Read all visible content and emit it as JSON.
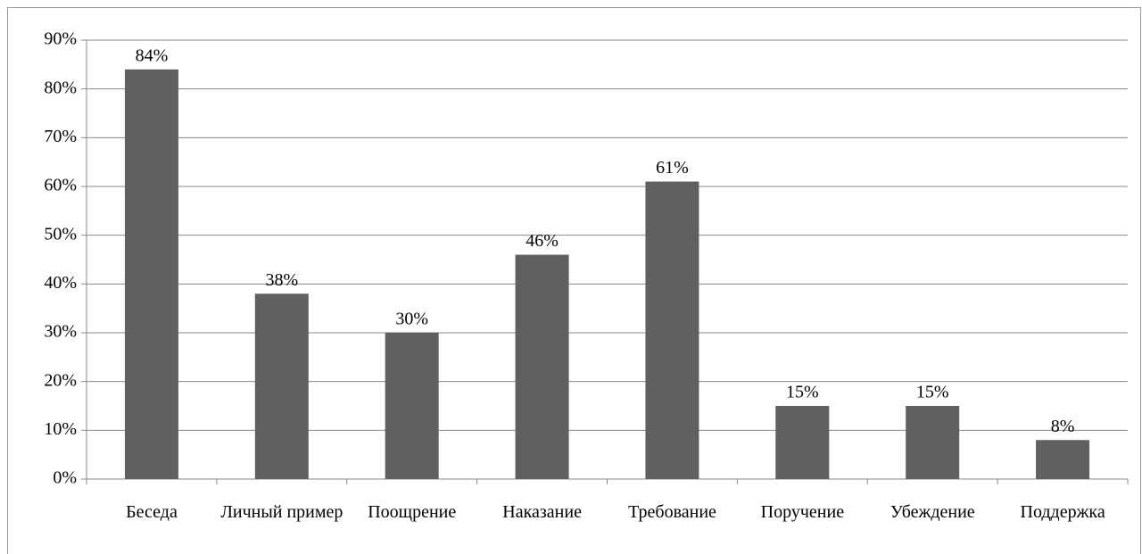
{
  "chart_data": {
    "type": "bar",
    "categories": [
      "Беседа",
      "Личный пример",
      "Поощрение",
      "Наказание",
      "Требование",
      "Поручение",
      "Убеждение",
      "Поддержка"
    ],
    "values": [
      84,
      38,
      30,
      46,
      61,
      15,
      15,
      8
    ],
    "value_labels": [
      "84%",
      "38%",
      "30%",
      "46%",
      "61%",
      "15%",
      "15%",
      "8%"
    ],
    "color": "#606060",
    "ylim": [
      0,
      90
    ],
    "yticks": [
      {
        "value": 0,
        "label": "0%"
      },
      {
        "value": 10,
        "label": "10%"
      },
      {
        "value": 20,
        "label": "20%"
      },
      {
        "value": 30,
        "label": "30%"
      },
      {
        "value": 40,
        "label": "40%"
      },
      {
        "value": 50,
        "label": "50%"
      },
      {
        "value": 60,
        "label": "60%"
      },
      {
        "value": 70,
        "label": "70%"
      },
      {
        "value": 80,
        "label": "80%"
      },
      {
        "value": 90,
        "label": "90%"
      }
    ],
    "grid": true
  }
}
